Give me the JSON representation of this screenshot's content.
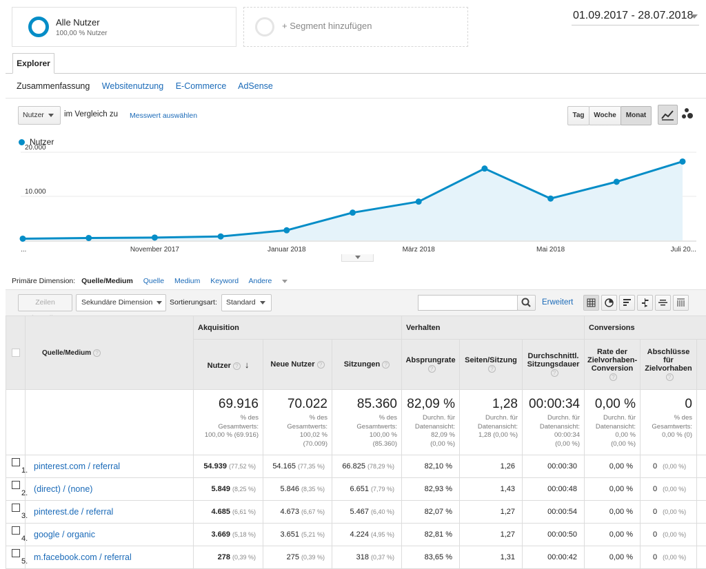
{
  "segments": {
    "all_users": {
      "name": "Alle Nutzer",
      "share": "100,00 % Nutzer"
    },
    "add_segment": "+ Segment hinzufügen"
  },
  "date_range": "01.09.2017 - 28.07.2018",
  "tabs": {
    "explorer": "Explorer"
  },
  "subtabs": [
    "Zusammenfassung",
    "Websitenutzung",
    "E-Commerce",
    "AdSense"
  ],
  "chart_controls": {
    "metric": "Nutzer",
    "compare_text": "im Vergleich zu",
    "compare_link": "Messwert auswählen",
    "periods": [
      "Tag",
      "Woche",
      "Monat"
    ],
    "active_period": "Monat"
  },
  "chart_data": {
    "type": "area",
    "series": [
      {
        "name": "Nutzer",
        "values": [
          400,
          550,
          650,
          900,
          2300,
          6300,
          8800,
          16300,
          9500,
          13300,
          17900
        ]
      }
    ],
    "ylim": [
      0,
      20000
    ],
    "y_ticks": [
      {
        "value": 10000,
        "label": "10.000"
      },
      {
        "value": 20000,
        "label": "20.000"
      }
    ],
    "x_ticks": [
      {
        "index": 0,
        "label": "..."
      },
      {
        "index": 2,
        "label": "November 2017"
      },
      {
        "index": 4,
        "label": "Januar 2018"
      },
      {
        "index": 6,
        "label": "März 2018"
      },
      {
        "index": 8,
        "label": "Mai 2018"
      },
      {
        "index": 10,
        "label": "Juli 20..."
      }
    ],
    "color": "#058dc7",
    "fill": "#e5f3fa"
  },
  "dimensions": {
    "label": "Primäre Dimension:",
    "active": "Quelle/Medium",
    "others": [
      "Quelle",
      "Medium",
      "Keyword"
    ],
    "more": "Andere"
  },
  "toolbar": {
    "plot_rows": "Zeilen darstellen",
    "secondary": "Sekundäre Dimension",
    "sort_label": "Sortierungsart:",
    "sort_value": "Standard",
    "advanced": "Erweitert"
  },
  "table": {
    "dim_header": "Quelle/Medium",
    "groups": [
      "Akquisition",
      "Verhalten",
      "Conversions"
    ],
    "columns": [
      "Nutzer",
      "Neue Nutzer",
      "Sitzungen",
      "Absprungrate",
      "Seiten/Sitzung",
      "Durchschnittl. Sitzungsdauer",
      "Rate der Zielvorhaben-Conversion",
      "Abschlüsse für Zielvorhaben"
    ],
    "totals": [
      {
        "value": "69.916",
        "l1": "% des",
        "l2": "Gesamtwerts:",
        "l3": "100,00 % (69.916)",
        "l4": ""
      },
      {
        "value": "70.022",
        "l1": "% des",
        "l2": "Gesamtwerts:",
        "l3": "100,02 %",
        "l4": "(70.009)"
      },
      {
        "value": "85.360",
        "l1": "% des",
        "l2": "Gesamtwerts:",
        "l3": "100,00 %",
        "l4": "(85.360)"
      },
      {
        "value": "82,09 %",
        "l1": "Durchn. für",
        "l2": "Datenansicht:",
        "l3": "82,09 %",
        "l4": "(0,00 %)"
      },
      {
        "value": "1,28",
        "l1": "Durchn. für",
        "l2": "Datenansicht:",
        "l3": "1,28 (0,00 %)",
        "l4": ""
      },
      {
        "value": "00:00:34",
        "l1": "Durchn. für",
        "l2": "Datenansicht:",
        "l3": "00:00:34",
        "l4": "(0,00 %)"
      },
      {
        "value": "0,00 %",
        "l1": "Durchn. für",
        "l2": "Datenansicht:",
        "l3": "0,00 %",
        "l4": "(0,00 %)"
      },
      {
        "value": "0",
        "l1": "% des",
        "l2": "Gesamtwerts:",
        "l3": "0,00 % (0)",
        "l4": ""
      }
    ],
    "rows": [
      {
        "num": "1.",
        "source": "pinterest.com / referral",
        "users": "54.939",
        "users_pct": "(77,52 %)",
        "new_users": "54.165",
        "new_pct": "(77,35 %)",
        "sessions": "66.825",
        "sessions_pct": "(78,29 %)",
        "bounce": "82,10 %",
        "pages": "1,26",
        "duration": "00:00:30",
        "conv_rate": "0,00 %",
        "goals": "0",
        "goals_pct": "(0,00 %)"
      },
      {
        "num": "2.",
        "source": "(direct) / (none)",
        "users": "5.849",
        "users_pct": "(8,25 %)",
        "new_users": "5.846",
        "new_pct": "(8,35 %)",
        "sessions": "6.651",
        "sessions_pct": "(7,79 %)",
        "bounce": "82,93 %",
        "pages": "1,43",
        "duration": "00:00:48",
        "conv_rate": "0,00 %",
        "goals": "0",
        "goals_pct": "(0,00 %)"
      },
      {
        "num": "3.",
        "source": "pinterest.de / referral",
        "users": "4.685",
        "users_pct": "(6,61 %)",
        "new_users": "4.673",
        "new_pct": "(6,67 %)",
        "sessions": "5.467",
        "sessions_pct": "(6,40 %)",
        "bounce": "82,07 %",
        "pages": "1,27",
        "duration": "00:00:54",
        "conv_rate": "0,00 %",
        "goals": "0",
        "goals_pct": "(0,00 %)"
      },
      {
        "num": "4.",
        "source": "google / organic",
        "users": "3.669",
        "users_pct": "(5,18 %)",
        "new_users": "3.651",
        "new_pct": "(5,21 %)",
        "sessions": "4.224",
        "sessions_pct": "(4,95 %)",
        "bounce": "82,81 %",
        "pages": "1,27",
        "duration": "00:00:50",
        "conv_rate": "0,00 %",
        "goals": "0",
        "goals_pct": "(0,00 %)"
      },
      {
        "num": "5.",
        "source": "m.facebook.com / referral",
        "users": "278",
        "users_pct": "(0,39 %)",
        "new_users": "275",
        "new_pct": "(0,39 %)",
        "sessions": "318",
        "sessions_pct": "(0,37 %)",
        "bounce": "83,65 %",
        "pages": "1,31",
        "duration": "00:00:42",
        "conv_rate": "0,00 %",
        "goals": "0",
        "goals_pct": "(0,00 %)"
      }
    ]
  }
}
